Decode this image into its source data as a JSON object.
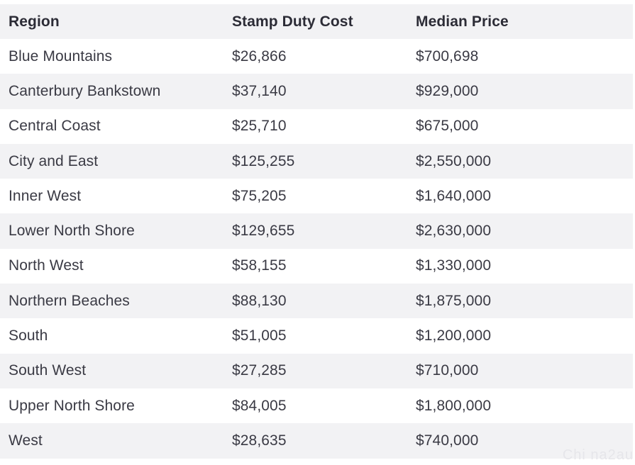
{
  "table": {
    "headers": {
      "region": "Region",
      "stamp_duty": "Stamp Duty Cost",
      "median_price": "Median Price"
    },
    "rows": [
      {
        "region": "Blue Mountains",
        "stamp_duty": "$26,866",
        "median_price": "$700,698"
      },
      {
        "region": "Canterbury Bankstown",
        "stamp_duty": "$37,140",
        "median_price": "$929,000"
      },
      {
        "region": "Central Coast",
        "stamp_duty": "$25,710",
        "median_price": "$675,000"
      },
      {
        "region": "City and East",
        "stamp_duty": "$125,255",
        "median_price": "$2,550,000"
      },
      {
        "region": "Inner West",
        "stamp_duty": "$75,205",
        "median_price": "$1,640,000"
      },
      {
        "region": "Lower North Shore",
        "stamp_duty": "$129,655",
        "median_price": "$2,630,000"
      },
      {
        "region": "North West",
        "stamp_duty": "$58,155",
        "median_price": "$1,330,000"
      },
      {
        "region": "Northern Beaches",
        "stamp_duty": "$88,130",
        "median_price": "$1,875,000"
      },
      {
        "region": "South",
        "stamp_duty": "$51,005",
        "median_price": "$1,200,000"
      },
      {
        "region": "South West",
        "stamp_duty": "$27,285",
        "median_price": "$710,000"
      },
      {
        "region": "Upper North Shore",
        "stamp_duty": "$84,005",
        "median_price": "$1,800,000"
      },
      {
        "region": "West",
        "stamp_duty": "$28,635",
        "median_price": "$740,000"
      }
    ]
  },
  "watermark": "Chi na2au",
  "colors": {
    "alt_row": "#f2f2f4",
    "text": "#3a3a44",
    "header_text": "#2c2c36"
  }
}
